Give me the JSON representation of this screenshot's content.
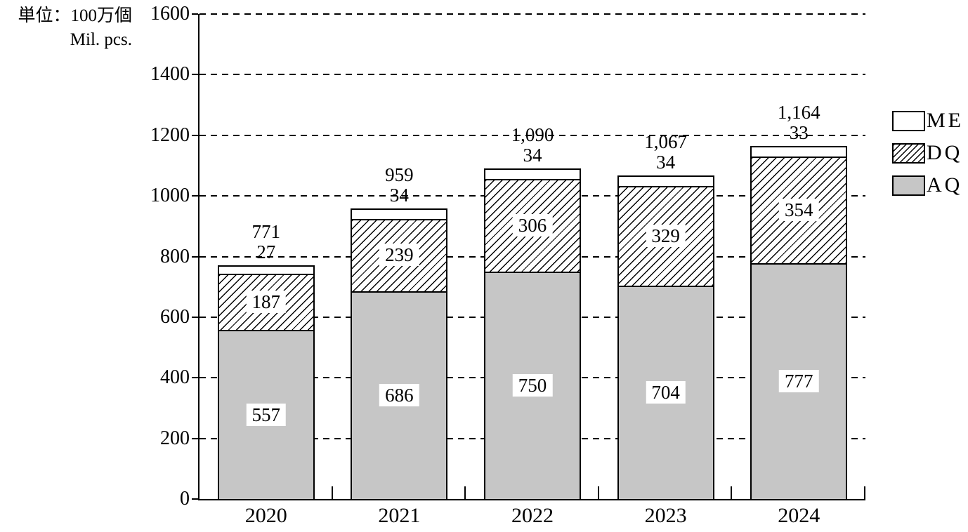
{
  "unit_label": {
    "line1": "単位：100万個",
    "line2": "Mil. pcs."
  },
  "chart_data": {
    "type": "bar",
    "stacked": true,
    "categories": [
      "2020",
      "2021",
      "2022",
      "2023",
      "2024"
    ],
    "series": [
      {
        "name": "AQ",
        "style": "gray",
        "color": "#c6c6c6",
        "values": [
          557,
          686,
          750,
          704,
          777
        ]
      },
      {
        "name": "DQ",
        "style": "hatch",
        "color": "hatched-black-on-white",
        "values": [
          187,
          239,
          306,
          329,
          354
        ]
      },
      {
        "name": "ME",
        "style": "white",
        "color": "#ffffff",
        "values": [
          27,
          34,
          34,
          34,
          33
        ]
      }
    ],
    "total_labels": [
      "771",
      "959",
      "1,090",
      "1,067",
      "1,164"
    ],
    "me_value_labels": [
      "27",
      "34",
      "34",
      "34",
      "33"
    ],
    "ylim": [
      0,
      1600
    ],
    "ytick_labels": [
      "0",
      "200",
      "400",
      "600",
      "800",
      "1000",
      "1200",
      "1400",
      "1600"
    ],
    "grid": "dashed-horizontal",
    "legend_position": "right-middle",
    "legend": [
      {
        "label": "ME",
        "style": "white"
      },
      {
        "label": "DQ",
        "style": "hatch"
      },
      {
        "label": "AQ",
        "style": "gray"
      }
    ],
    "colors": {
      "axis": "#000000",
      "bar_gray": "#c6c6c6",
      "background": "#ffffff"
    }
  }
}
